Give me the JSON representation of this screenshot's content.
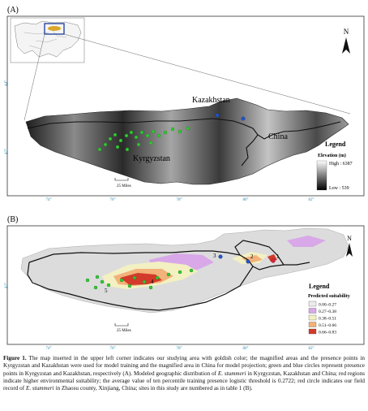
{
  "panel_a": {
    "label": "(A)",
    "country_labels": [
      "Kazakhstan",
      "China",
      "Kyrgyzstan"
    ],
    "lat_labels": [
      "44°",
      "42°"
    ],
    "lon_labels": [
      "74°",
      "76°",
      "78°",
      "80°",
      "82°"
    ],
    "scale_label": "25 Miles",
    "north": "N",
    "legend": {
      "title": "Legend",
      "subtitle": "Elevation (m)",
      "high": "High : 6387",
      "low": "Low : 539"
    }
  },
  "panel_b": {
    "label": "(B)",
    "lat_labels": [
      "42°"
    ],
    "lon_labels": [
      "74°",
      "76°",
      "78°",
      "80°",
      "82°"
    ],
    "scale_label": "25 Miles",
    "north": "N",
    "site_numbers": [
      "1",
      "2",
      "3",
      "4",
      "5"
    ],
    "legend": {
      "title": "Legend",
      "subtitle": "Predicted suitability",
      "classes": [
        {
          "label": "0.00–0.27",
          "color": "#ececec"
        },
        {
          "label": "0.27–0.38",
          "color": "#d8a8e8"
        },
        {
          "label": "0.38–0.51",
          "color": "#f3f0c2"
        },
        {
          "label": "0.51–0.66",
          "color": "#f2b27a"
        },
        {
          "label": "0.66–0.83",
          "color": "#d23a2a"
        }
      ]
    }
  },
  "colors": {
    "presence_kg": "#33cc33",
    "presence_kz": "#2255cc",
    "boundary": "#111111",
    "inset_highlight": "#d9a72a"
  },
  "caption": {
    "figure_label": "Figure 1.",
    "text_1": " The map inserted in the upper left corner indicates our studying area with goldish color; the magnified areas and the presence points in Kyrgyzstan and Kazakhstan were used for model training and the magnified area in China for model projection; green and blue circles represent presence points in Kyrgyzstan and Kazakhstan, respectively (A). Modeled geographic distribution of ",
    "species": "E. stummeri",
    "text_2": " in Kyrgyzstan, Kazakhstan and China; red regions indicate higher environmental suitability; the average value of ten percentile training presence logistic threshold is 0.2722; red circle indicates our field record of ",
    "text_3": " in Zhaosu county, Xinjiang, China; sites in this study are numbered as in table 1 (B)."
  }
}
